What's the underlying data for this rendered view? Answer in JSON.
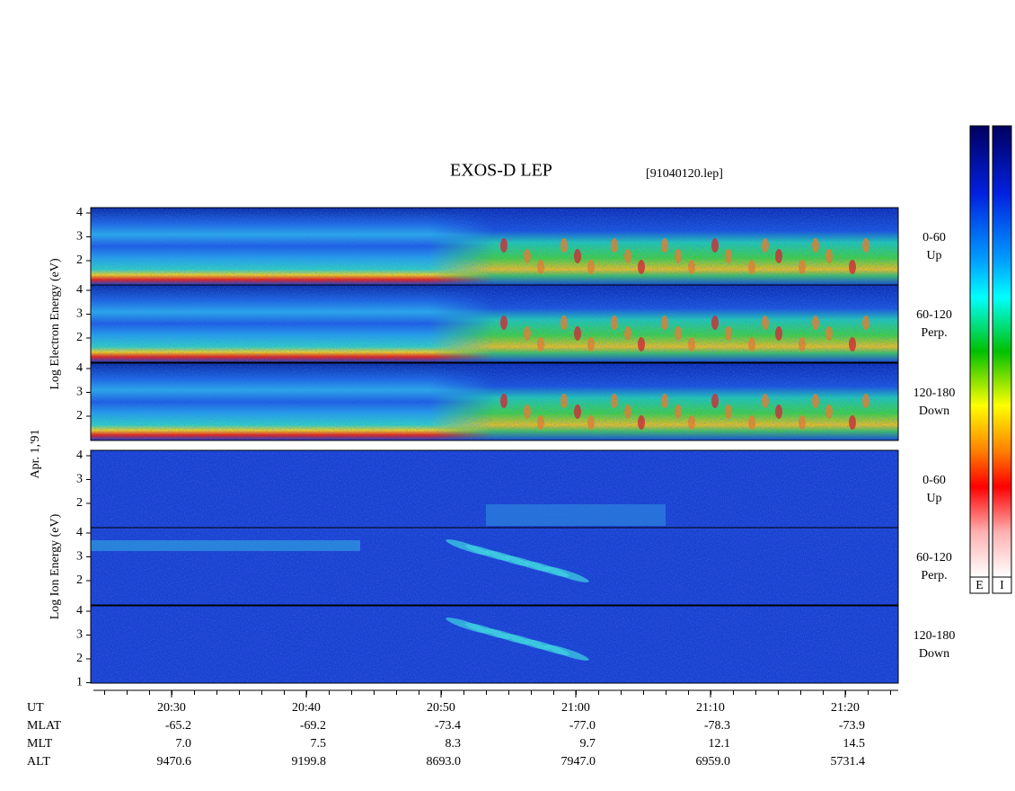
{
  "title": "EXOS-D LEP",
  "file": "[91040120.lep]",
  "date": "Apr. 1,'91",
  "groups": [
    {
      "label": "Log Electron Energy (eV)",
      "panels": [
        {
          "angle": "0-60",
          "direction": "Up",
          "yticks": [
            4,
            3,
            2
          ]
        },
        {
          "angle": "60-120",
          "direction": "Perp.",
          "yticks": [
            4,
            3,
            2
          ]
        },
        {
          "angle": "120-180",
          "direction": "Down",
          "yticks": [
            4,
            3,
            2
          ]
        }
      ]
    },
    {
      "label": "Log Ion Energy (eV)",
      "panels": [
        {
          "angle": "0-60",
          "direction": "Up",
          "yticks": [
            4,
            3,
            2
          ]
        },
        {
          "angle": "60-120",
          "direction": "Perp.",
          "yticks": [
            4,
            3,
            2
          ]
        },
        {
          "angle": "120-180",
          "direction": "Down",
          "yticks": [
            4,
            3,
            2,
            1
          ]
        }
      ]
    }
  ],
  "x_axis": {
    "rows": [
      {
        "label": "UT",
        "values": [
          "20:30",
          "20:40",
          "20:50",
          "21:00",
          "21:10",
          "21:20"
        ]
      },
      {
        "label": "MLAT",
        "values": [
          "-65.2",
          "-69.2",
          "-73.4",
          "-77.0",
          "-78.3",
          "-73.9"
        ]
      },
      {
        "label": "MLT",
        "values": [
          "7.0",
          "7.5",
          "8.3",
          "9.7",
          "12.1",
          "14.5"
        ]
      },
      {
        "label": "ALT",
        "values": [
          "9470.6",
          "9199.8",
          "8693.0",
          "7947.0",
          "6959.0",
          "5731.4"
        ]
      }
    ]
  },
  "colorbars": [
    "E",
    "I"
  ]
}
